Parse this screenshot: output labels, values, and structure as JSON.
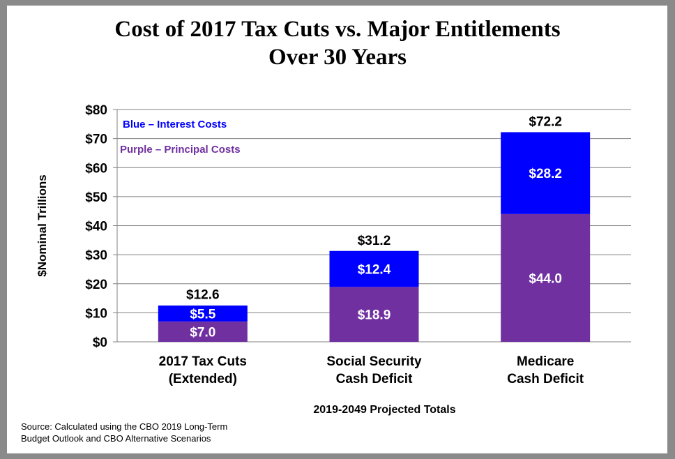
{
  "chart_data": {
    "type": "bar",
    "stacked": true,
    "title": [
      "Cost of  2017 Tax Cuts vs. Major Entitlements",
      "Over 30 Years"
    ],
    "ylabel": "$Nominal Trillions",
    "xlabel": "2019-2049 Projected Totals",
    "ylim": [
      0,
      80
    ],
    "yticks": [
      {
        "value": 0,
        "label": "$0"
      },
      {
        "value": 10,
        "label": "$10"
      },
      {
        "value": 20,
        "label": "$20"
      },
      {
        "value": 30,
        "label": "$30"
      },
      {
        "value": 40,
        "label": "$40"
      },
      {
        "value": 50,
        "label": "$50"
      },
      {
        "value": 60,
        "label": "$60"
      },
      {
        "value": 70,
        "label": "$70"
      },
      {
        "value": 80,
        "label": "$80"
      }
    ],
    "grid": true,
    "categories": [
      [
        "2017 Tax Cuts",
        "(Extended)"
      ],
      [
        "Social Security",
        "Cash Deficit"
      ],
      [
        "Medicare",
        "Cash Deficit"
      ]
    ],
    "series": [
      {
        "name": "Purple – Principal Costs",
        "color": "#7030a0",
        "values": [
          7.0,
          18.9,
          44.0
        ],
        "labels": [
          "$7.0",
          "$18.9",
          "$44.0"
        ]
      },
      {
        "name": "Blue – Interest Costs",
        "color": "#0000ff",
        "values": [
          5.5,
          12.4,
          28.2
        ],
        "labels": [
          "$5.5",
          "$12.4",
          "$28.2"
        ]
      }
    ],
    "totals": [
      12.6,
      31.2,
      72.2
    ],
    "total_labels": [
      "$12.6",
      "$31.2",
      "$72.2"
    ],
    "legend_placement": "top-left"
  },
  "source": [
    "Source: Calculated using the CBO 2019 Long-Term",
    "Budget Outlook and CBO Alternative Scenarios"
  ]
}
